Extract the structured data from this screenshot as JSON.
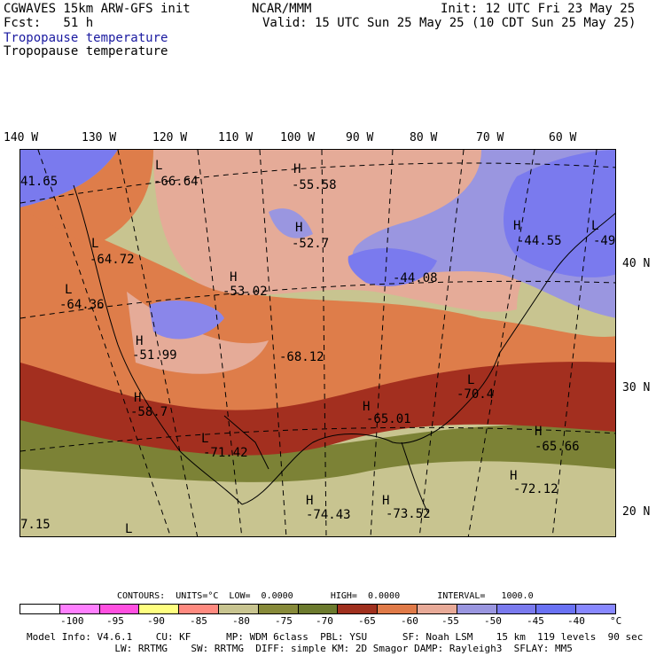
{
  "header": {
    "model": "CGWAVES 15km ARW-GFS init",
    "org": "NCAR/MMM",
    "init": "Init: 12 UTC Fri 23 May 25",
    "fcst": "Fcst:   51 h",
    "valid": "Valid: 15 UTC Sun 25 May 25 (10 CDT Sun 25 May 25)",
    "field1": "Tropopause temperature",
    "field2": "Tropopause temperature"
  },
  "lon_labels": [
    "140 W",
    "130 W",
    "120 W",
    "110 W",
    "100 W",
    "90 W",
    "80 W",
    "70 W",
    "60 W"
  ],
  "lat_labels": [
    "40 N",
    "30 N",
    "20 N"
  ],
  "map_labels": [
    {
      "type": "L",
      "value": "-66.64"
    },
    {
      "type": "H",
      "value": "-55.58"
    },
    {
      "type": "",
      "value": "41.65"
    },
    {
      "type": "L",
      "value": "-64.72"
    },
    {
      "type": "H",
      "value": "-52.7"
    },
    {
      "type": "H",
      "value": "-44.55"
    },
    {
      "type": "L",
      "value": "-49"
    },
    {
      "type": "L",
      "value": "-64.36"
    },
    {
      "type": "H",
      "value": "-53.02"
    },
    {
      "type": "",
      "value": "-44.08"
    },
    {
      "type": "H",
      "value": "-51.99"
    },
    {
      "type": "",
      "value": "-68.12"
    },
    {
      "type": "L",
      "value": "-70.4"
    },
    {
      "type": "H",
      "value": "-58.7"
    },
    {
      "type": "H",
      "value": "-65.01"
    },
    {
      "type": "H",
      "value": "-65.66"
    },
    {
      "type": "L",
      "value": "-71.42"
    },
    {
      "type": "H",
      "value": "-72.12"
    },
    {
      "type": "H",
      "value": "-74.43"
    },
    {
      "type": "H",
      "value": "-73.52"
    },
    {
      "type": "",
      "value": "7.15"
    },
    {
      "type": "L",
      "value": ""
    }
  ],
  "contours": {
    "text": "CONTOURS:  UNITS=°C  LOW=  0.0000       HIGH=  0.0000       INTERVAL=   1000.0"
  },
  "colorbar": {
    "colors": [
      "#ffffff",
      "#ff80ff",
      "#ff50e0",
      "#ffff80",
      "#ff8a80",
      "#c8c490",
      "#878a3a",
      "#6c7a2e",
      "#a0301e",
      "#e07a48",
      "#e8aa98",
      "#9a96e0",
      "#7a7aee",
      "#6a72f4",
      "#8888ff"
    ],
    "labels": [
      "-100",
      "-95",
      "-90",
      "-85",
      "-80",
      "-75",
      "-70",
      "-65",
      "-60",
      "-55",
      "-50",
      "-45",
      "-40",
      "°C"
    ]
  },
  "footer": {
    "line1": "Model Info: V4.6.1    CU: KF      MP: WDM 6class  PBL: YSU      SF: Noah LSM    15 km  119 levels  90 sec",
    "line2": "               LW: RRTMG    SW: RRTMG  DIFF: simple KM: 2D Smagor DAMP: Rayleigh3  SFLAY: MM5"
  }
}
